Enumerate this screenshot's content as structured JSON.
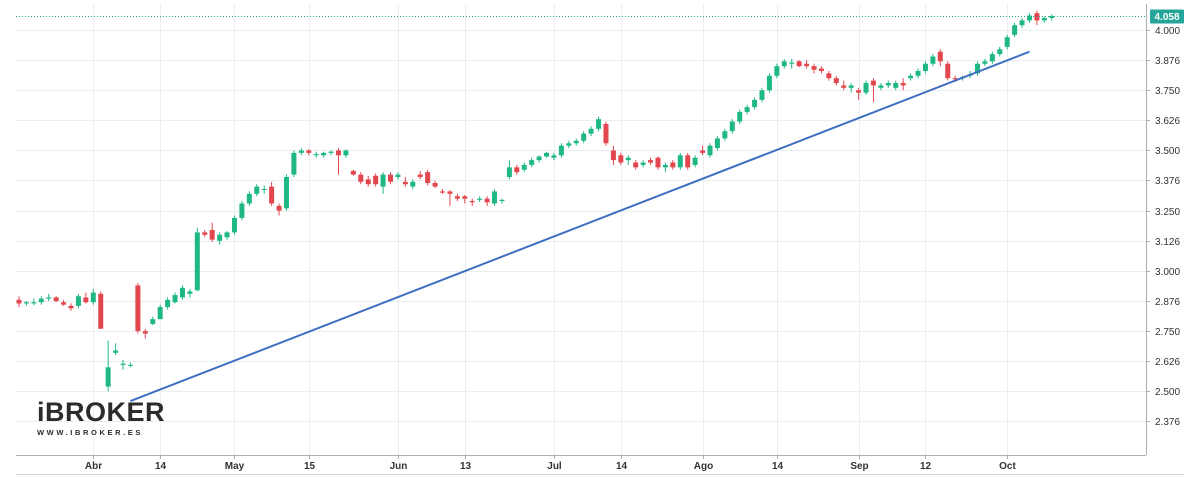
{
  "chart_data": {
    "type": "candlestick",
    "y_ticks": [
      "4.000",
      "3.876",
      "3.750",
      "3.626",
      "3.500",
      "3.376",
      "3.250",
      "3.126",
      "3.000",
      "2.876",
      "2.750",
      "2.626",
      "2.500",
      "2.376"
    ],
    "y_tick_values": [
      4.0,
      3.876,
      3.75,
      3.626,
      3.5,
      3.376,
      3.25,
      3.126,
      3.0,
      2.876,
      2.75,
      2.626,
      2.5,
      2.376
    ],
    "ylim": [
      2.236,
      4.108
    ],
    "x_ticks": [
      "Abr",
      "14",
      "May",
      "15",
      "Jun",
      "13",
      "Jul",
      "14",
      "Ago",
      "14",
      "Sep",
      "12",
      "Oct"
    ],
    "x_tick_index": [
      10,
      19,
      29,
      39,
      51,
      60,
      72,
      81,
      92,
      102,
      113,
      122,
      133
    ],
    "last_price": {
      "label": "4.058",
      "value": 4.058,
      "color": "#26a69a"
    },
    "trendline": {
      "from": {
        "index": 15,
        "value": 2.46
      },
      "to": {
        "index": 136,
        "value": 3.91
      },
      "color": "#3f6fc1"
    },
    "colors": {
      "up": "#1fb884",
      "down": "#e2474e",
      "grid": "#e9eef3",
      "axis": "#a8b0b8"
    },
    "candles": [
      [
        2.88,
        2.895,
        2.85,
        2.865
      ],
      [
        2.865,
        2.875,
        2.855,
        2.87
      ],
      [
        2.865,
        2.885,
        2.858,
        2.87
      ],
      [
        2.87,
        2.895,
        2.86,
        2.885
      ],
      [
        2.885,
        2.905,
        2.875,
        2.89
      ],
      [
        2.89,
        2.895,
        2.87,
        2.875
      ],
      [
        2.87,
        2.88,
        2.855,
        2.86
      ],
      [
        2.855,
        2.865,
        2.835,
        2.845
      ],
      [
        2.855,
        2.905,
        2.845,
        2.895
      ],
      [
        2.89,
        2.91,
        2.865,
        2.87
      ],
      [
        2.87,
        2.925,
        2.86,
        2.91
      ],
      [
        2.905,
        2.915,
        2.76,
        2.76
      ],
      [
        2.52,
        2.71,
        2.5,
        2.6
      ],
      [
        2.66,
        2.7,
        2.65,
        2.67
      ],
      [
        2.61,
        2.63,
        2.59,
        2.615
      ],
      [
        2.61,
        2.62,
        2.6,
        2.61
      ],
      [
        2.94,
        2.95,
        2.74,
        2.75
      ],
      [
        2.75,
        2.76,
        2.72,
        2.74
      ],
      [
        2.78,
        2.81,
        2.775,
        2.8
      ],
      [
        2.8,
        2.86,
        2.8,
        2.85
      ],
      [
        2.85,
        2.89,
        2.84,
        2.88
      ],
      [
        2.87,
        2.91,
        2.865,
        2.9
      ],
      [
        2.89,
        2.94,
        2.88,
        2.93
      ],
      [
        2.905,
        2.925,
        2.89,
        2.915
      ],
      [
        2.92,
        3.18,
        2.915,
        3.16
      ],
      [
        3.16,
        3.17,
        3.14,
        3.15
      ],
      [
        3.17,
        3.2,
        3.12,
        3.13
      ],
      [
        3.125,
        3.16,
        3.11,
        3.15
      ],
      [
        3.14,
        3.165,
        3.13,
        3.16
      ],
      [
        3.16,
        3.23,
        3.15,
        3.22
      ],
      [
        3.22,
        3.29,
        3.21,
        3.28
      ],
      [
        3.28,
        3.33,
        3.27,
        3.32
      ],
      [
        3.32,
        3.36,
        3.31,
        3.35
      ],
      [
        3.34,
        3.355,
        3.32,
        3.34
      ],
      [
        3.35,
        3.37,
        3.27,
        3.28
      ],
      [
        3.27,
        3.28,
        3.23,
        3.25
      ],
      [
        3.26,
        3.4,
        3.25,
        3.39
      ],
      [
        3.4,
        3.5,
        3.39,
        3.49
      ],
      [
        3.49,
        3.51,
        3.48,
        3.5
      ],
      [
        3.5,
        3.505,
        3.48,
        3.49
      ],
      [
        3.48,
        3.495,
        3.47,
        3.485
      ],
      [
        3.48,
        3.495,
        3.47,
        3.49
      ],
      [
        3.49,
        3.5,
        3.48,
        3.495
      ],
      [
        3.5,
        3.51,
        3.4,
        3.48
      ],
      [
        3.48,
        3.505,
        3.47,
        3.5
      ],
      [
        3.415,
        3.42,
        3.395,
        3.4
      ],
      [
        3.4,
        3.41,
        3.36,
        3.37
      ],
      [
        3.38,
        3.395,
        3.35,
        3.36
      ],
      [
        3.395,
        3.405,
        3.35,
        3.36
      ],
      [
        3.35,
        3.41,
        3.32,
        3.4
      ],
      [
        3.4,
        3.41,
        3.36,
        3.37
      ],
      [
        3.39,
        3.41,
        3.38,
        3.4
      ],
      [
        3.37,
        3.39,
        3.35,
        3.36
      ],
      [
        3.35,
        3.38,
        3.34,
        3.37
      ],
      [
        3.4,
        3.415,
        3.38,
        3.39
      ],
      [
        3.41,
        3.42,
        3.355,
        3.365
      ],
      [
        3.365,
        3.375,
        3.345,
        3.35
      ],
      [
        3.33,
        3.34,
        3.32,
        3.325
      ],
      [
        3.33,
        3.335,
        3.27,
        3.32
      ],
      [
        3.31,
        3.32,
        3.29,
        3.3
      ],
      [
        3.31,
        3.315,
        3.28,
        3.3
      ],
      [
        3.29,
        3.3,
        3.27,
        3.285
      ],
      [
        3.295,
        3.31,
        3.285,
        3.3
      ],
      [
        3.3,
        3.31,
        3.27,
        3.285
      ],
      [
        3.28,
        3.34,
        3.27,
        3.33
      ],
      [
        3.29,
        3.3,
        3.28,
        3.295
      ],
      [
        3.39,
        3.46,
        3.38,
        3.43
      ],
      [
        3.43,
        3.44,
        3.4,
        3.41
      ],
      [
        3.42,
        3.45,
        3.41,
        3.44
      ],
      [
        3.44,
        3.47,
        3.43,
        3.46
      ],
      [
        3.46,
        3.48,
        3.45,
        3.475
      ],
      [
        3.475,
        3.495,
        3.47,
        3.49
      ],
      [
        3.47,
        3.49,
        3.46,
        3.48
      ],
      [
        3.48,
        3.53,
        3.47,
        3.52
      ],
      [
        3.52,
        3.54,
        3.51,
        3.53
      ],
      [
        3.53,
        3.55,
        3.52,
        3.54
      ],
      [
        3.54,
        3.58,
        3.53,
        3.57
      ],
      [
        3.57,
        3.6,
        3.56,
        3.59
      ],
      [
        3.59,
        3.64,
        3.58,
        3.63
      ],
      [
        3.61,
        3.62,
        3.52,
        3.53
      ],
      [
        3.5,
        3.52,
        3.44,
        3.46
      ],
      [
        3.48,
        3.49,
        3.44,
        3.45
      ],
      [
        3.46,
        3.48,
        3.44,
        3.47
      ],
      [
        3.45,
        3.46,
        3.42,
        3.43
      ],
      [
        3.44,
        3.46,
        3.43,
        3.45
      ],
      [
        3.46,
        3.47,
        3.44,
        3.45
      ],
      [
        3.47,
        3.475,
        3.42,
        3.43
      ],
      [
        3.43,
        3.45,
        3.41,
        3.44
      ],
      [
        3.45,
        3.46,
        3.42,
        3.43
      ],
      [
        3.43,
        3.49,
        3.42,
        3.48
      ],
      [
        3.48,
        3.49,
        3.42,
        3.43
      ],
      [
        3.44,
        3.48,
        3.43,
        3.47
      ],
      [
        3.5,
        3.52,
        3.48,
        3.49
      ],
      [
        3.48,
        3.53,
        3.47,
        3.52
      ],
      [
        3.51,
        3.56,
        3.5,
        3.55
      ],
      [
        3.55,
        3.59,
        3.54,
        3.58
      ],
      [
        3.58,
        3.63,
        3.57,
        3.62
      ],
      [
        3.62,
        3.67,
        3.61,
        3.66
      ],
      [
        3.66,
        3.69,
        3.65,
        3.68
      ],
      [
        3.68,
        3.72,
        3.67,
        3.71
      ],
      [
        3.71,
        3.76,
        3.7,
        3.75
      ],
      [
        3.75,
        3.82,
        3.74,
        3.81
      ],
      [
        3.81,
        3.86,
        3.8,
        3.85
      ],
      [
        3.85,
        3.88,
        3.84,
        3.87
      ],
      [
        3.86,
        3.88,
        3.84,
        3.865
      ],
      [
        3.87,
        3.875,
        3.845,
        3.85
      ],
      [
        3.86,
        3.875,
        3.84,
        3.85
      ],
      [
        3.85,
        3.86,
        3.82,
        3.835
      ],
      [
        3.84,
        3.85,
        3.82,
        3.83
      ],
      [
        3.82,
        3.83,
        3.79,
        3.8
      ],
      [
        3.8,
        3.81,
        3.77,
        3.78
      ],
      [
        3.77,
        3.79,
        3.75,
        3.76
      ],
      [
        3.76,
        3.78,
        3.74,
        3.77
      ],
      [
        3.75,
        3.76,
        3.71,
        3.74
      ],
      [
        3.74,
        3.79,
        3.73,
        3.78
      ],
      [
        3.79,
        3.8,
        3.7,
        3.77
      ],
      [
        3.76,
        3.78,
        3.75,
        3.77
      ],
      [
        3.77,
        3.79,
        3.76,
        3.78
      ],
      [
        3.76,
        3.79,
        3.75,
        3.78
      ],
      [
        3.78,
        3.8,
        3.75,
        3.77
      ],
      [
        3.8,
        3.82,
        3.79,
        3.81
      ],
      [
        3.81,
        3.84,
        3.8,
        3.83
      ],
      [
        3.83,
        3.87,
        3.82,
        3.86
      ],
      [
        3.86,
        3.9,
        3.85,
        3.89
      ],
      [
        3.91,
        3.92,
        3.85,
        3.87
      ],
      [
        3.86,
        3.87,
        3.79,
        3.8
      ],
      [
        3.8,
        3.81,
        3.785,
        3.795
      ],
      [
        3.8,
        3.81,
        3.79,
        3.805
      ],
      [
        3.81,
        3.83,
        3.8,
        3.815
      ],
      [
        3.82,
        3.87,
        3.81,
        3.86
      ],
      [
        3.86,
        3.88,
        3.85,
        3.87
      ],
      [
        3.87,
        3.91,
        3.86,
        3.9
      ],
      [
        3.9,
        3.93,
        3.89,
        3.92
      ],
      [
        3.93,
        3.98,
        3.92,
        3.97
      ],
      [
        3.98,
        4.03,
        3.97,
        4.02
      ],
      [
        4.02,
        4.05,
        4.01,
        4.04
      ],
      [
        4.04,
        4.07,
        4.03,
        4.06
      ],
      [
        4.07,
        4.08,
        4.02,
        4.04
      ],
      [
        4.04,
        4.055,
        4.03,
        4.05
      ],
      [
        4.05,
        4.065,
        4.04,
        4.058
      ]
    ]
  },
  "brand": {
    "name": "iBROKER",
    "url": "WWW.IBROKER.ES"
  }
}
